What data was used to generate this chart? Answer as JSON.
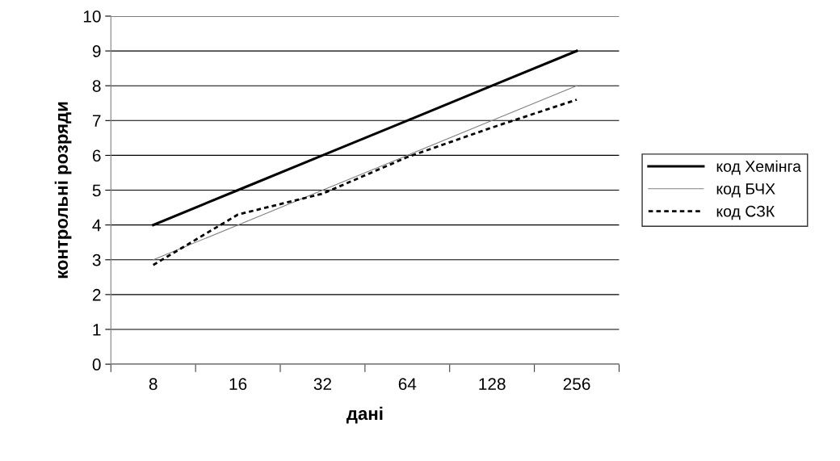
{
  "chart_data": {
    "type": "line",
    "xlabel": "дані",
    "ylabel": "контрольні розряди",
    "categories": [
      "8",
      "16",
      "32",
      "64",
      "128",
      "256"
    ],
    "series": [
      {
        "name": "код Хемінга",
        "color": "#000000",
        "values": [
          4,
          5,
          6,
          7,
          8,
          9
        ],
        "line_style": "solid"
      },
      {
        "name": "код БЧХ",
        "color": "#808080",
        "values": [
          3,
          4,
          5,
          6,
          7,
          8
        ],
        "line_style": "solid"
      },
      {
        "name": "код СЗК",
        "color": "#000000",
        "values": [
          2.85,
          4.3,
          4.9,
          5.95,
          6.8,
          7.6
        ],
        "line_style": "dashed"
      }
    ],
    "ylim": [
      0,
      10
    ],
    "yticks": [
      0,
      1,
      2,
      3,
      4,
      5,
      6,
      7,
      8,
      9,
      10
    ],
    "grid": "y",
    "legend": "right",
    "marker": "none"
  }
}
